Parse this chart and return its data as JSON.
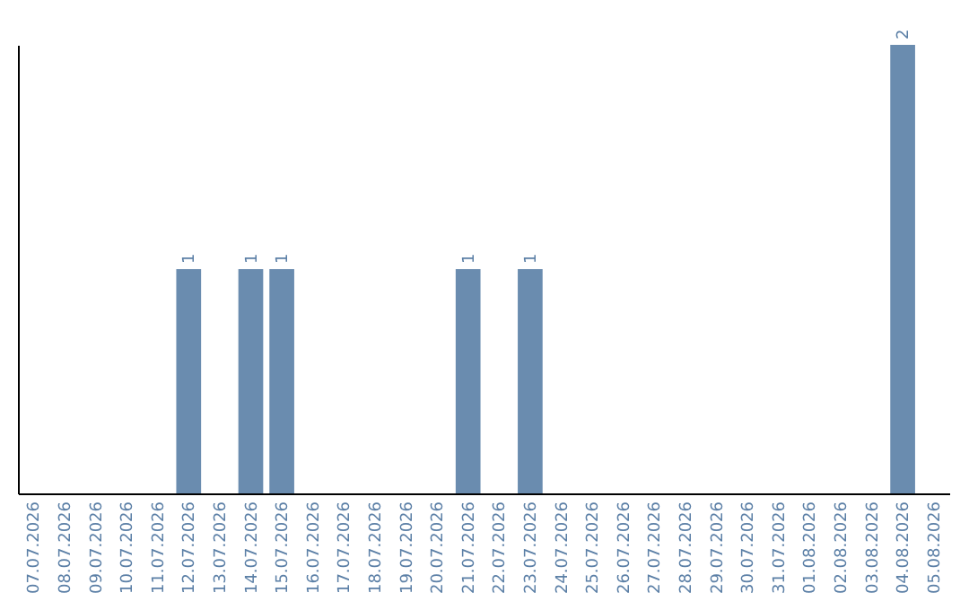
{
  "chart_data": {
    "type": "bar",
    "categories": [
      "07.07.2026",
      "08.07.2026",
      "09.07.2026",
      "10.07.2026",
      "11.07.2026",
      "12.07.2026",
      "13.07.2026",
      "14.07.2026",
      "15.07.2026",
      "16.07.2026",
      "17.07.2026",
      "18.07.2026",
      "19.07.2026",
      "20.07.2026",
      "21.07.2026",
      "22.07.2026",
      "23.07.2026",
      "24.07.2026",
      "25.07.2026",
      "26.07.2026",
      "27.07.2026",
      "28.07.2026",
      "29.07.2026",
      "30.07.2026",
      "31.07.2026",
      "01.08.2026",
      "02.08.2026",
      "03.08.2026",
      "04.08.2026",
      "05.08.2026"
    ],
    "values": [
      0,
      0,
      0,
      0,
      0,
      1,
      0,
      1,
      1,
      0,
      0,
      0,
      0,
      0,
      1,
      0,
      1,
      0,
      0,
      0,
      0,
      0,
      0,
      0,
      0,
      0,
      0,
      0,
      2,
      0
    ],
    "value_labels": [
      null,
      null,
      null,
      null,
      null,
      "1",
      null,
      "1",
      "1",
      null,
      null,
      null,
      null,
      null,
      "1",
      null,
      "1",
      null,
      null,
      null,
      null,
      null,
      null,
      null,
      null,
      null,
      null,
      null,
      "2",
      null
    ],
    "color": "#6a8caf",
    "tick_labels": "x"
  }
}
